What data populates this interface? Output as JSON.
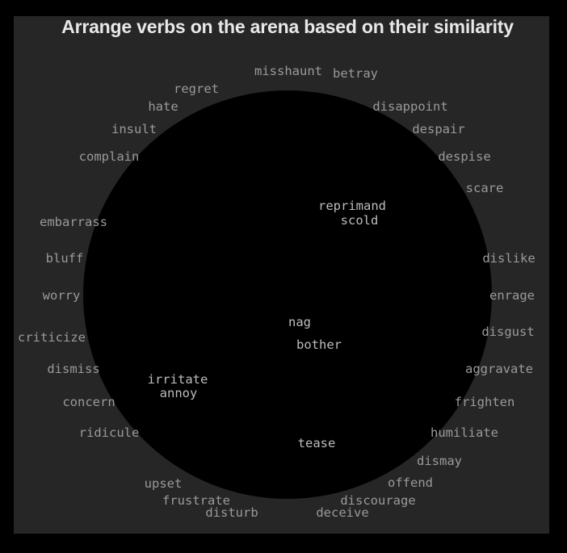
{
  "title": "Arrange verbs on the arena based on their similarity",
  "colors": {
    "background": "#000000",
    "panel": "#262626",
    "arena": "#000000",
    "title": "#e8e8e8",
    "verb_outside": "#9a9a9a",
    "verb_inside": "#bdbdbd"
  },
  "verbs": {
    "misshaunt": "misshaunt",
    "betray": "betray",
    "regret": "regret",
    "hate": "hate",
    "disappoint": "disappoint",
    "insult": "insult",
    "despair": "despair",
    "complain": "complain",
    "despise": "despise",
    "scare": "scare",
    "reprimand": "reprimand",
    "scold": "scold",
    "embarrass": "embarrass",
    "bluff": "bluff",
    "dislike": "dislike",
    "worry": "worry",
    "enrage": "enrage",
    "nag": "nag",
    "criticize": "criticize",
    "disgust": "disgust",
    "bother": "bother",
    "dismiss": "dismiss",
    "aggravate": "aggravate",
    "irritate": "irritate",
    "annoy": "annoy",
    "concern": "concern",
    "frighten": "frighten",
    "ridicule": "ridicule",
    "humiliate": "humiliate",
    "tease": "tease",
    "dismay": "dismay",
    "upset": "upset",
    "offend": "offend",
    "frustrate": "frustrate",
    "discourage": "discourage",
    "disturb": "disturb",
    "deceive": "deceive"
  }
}
